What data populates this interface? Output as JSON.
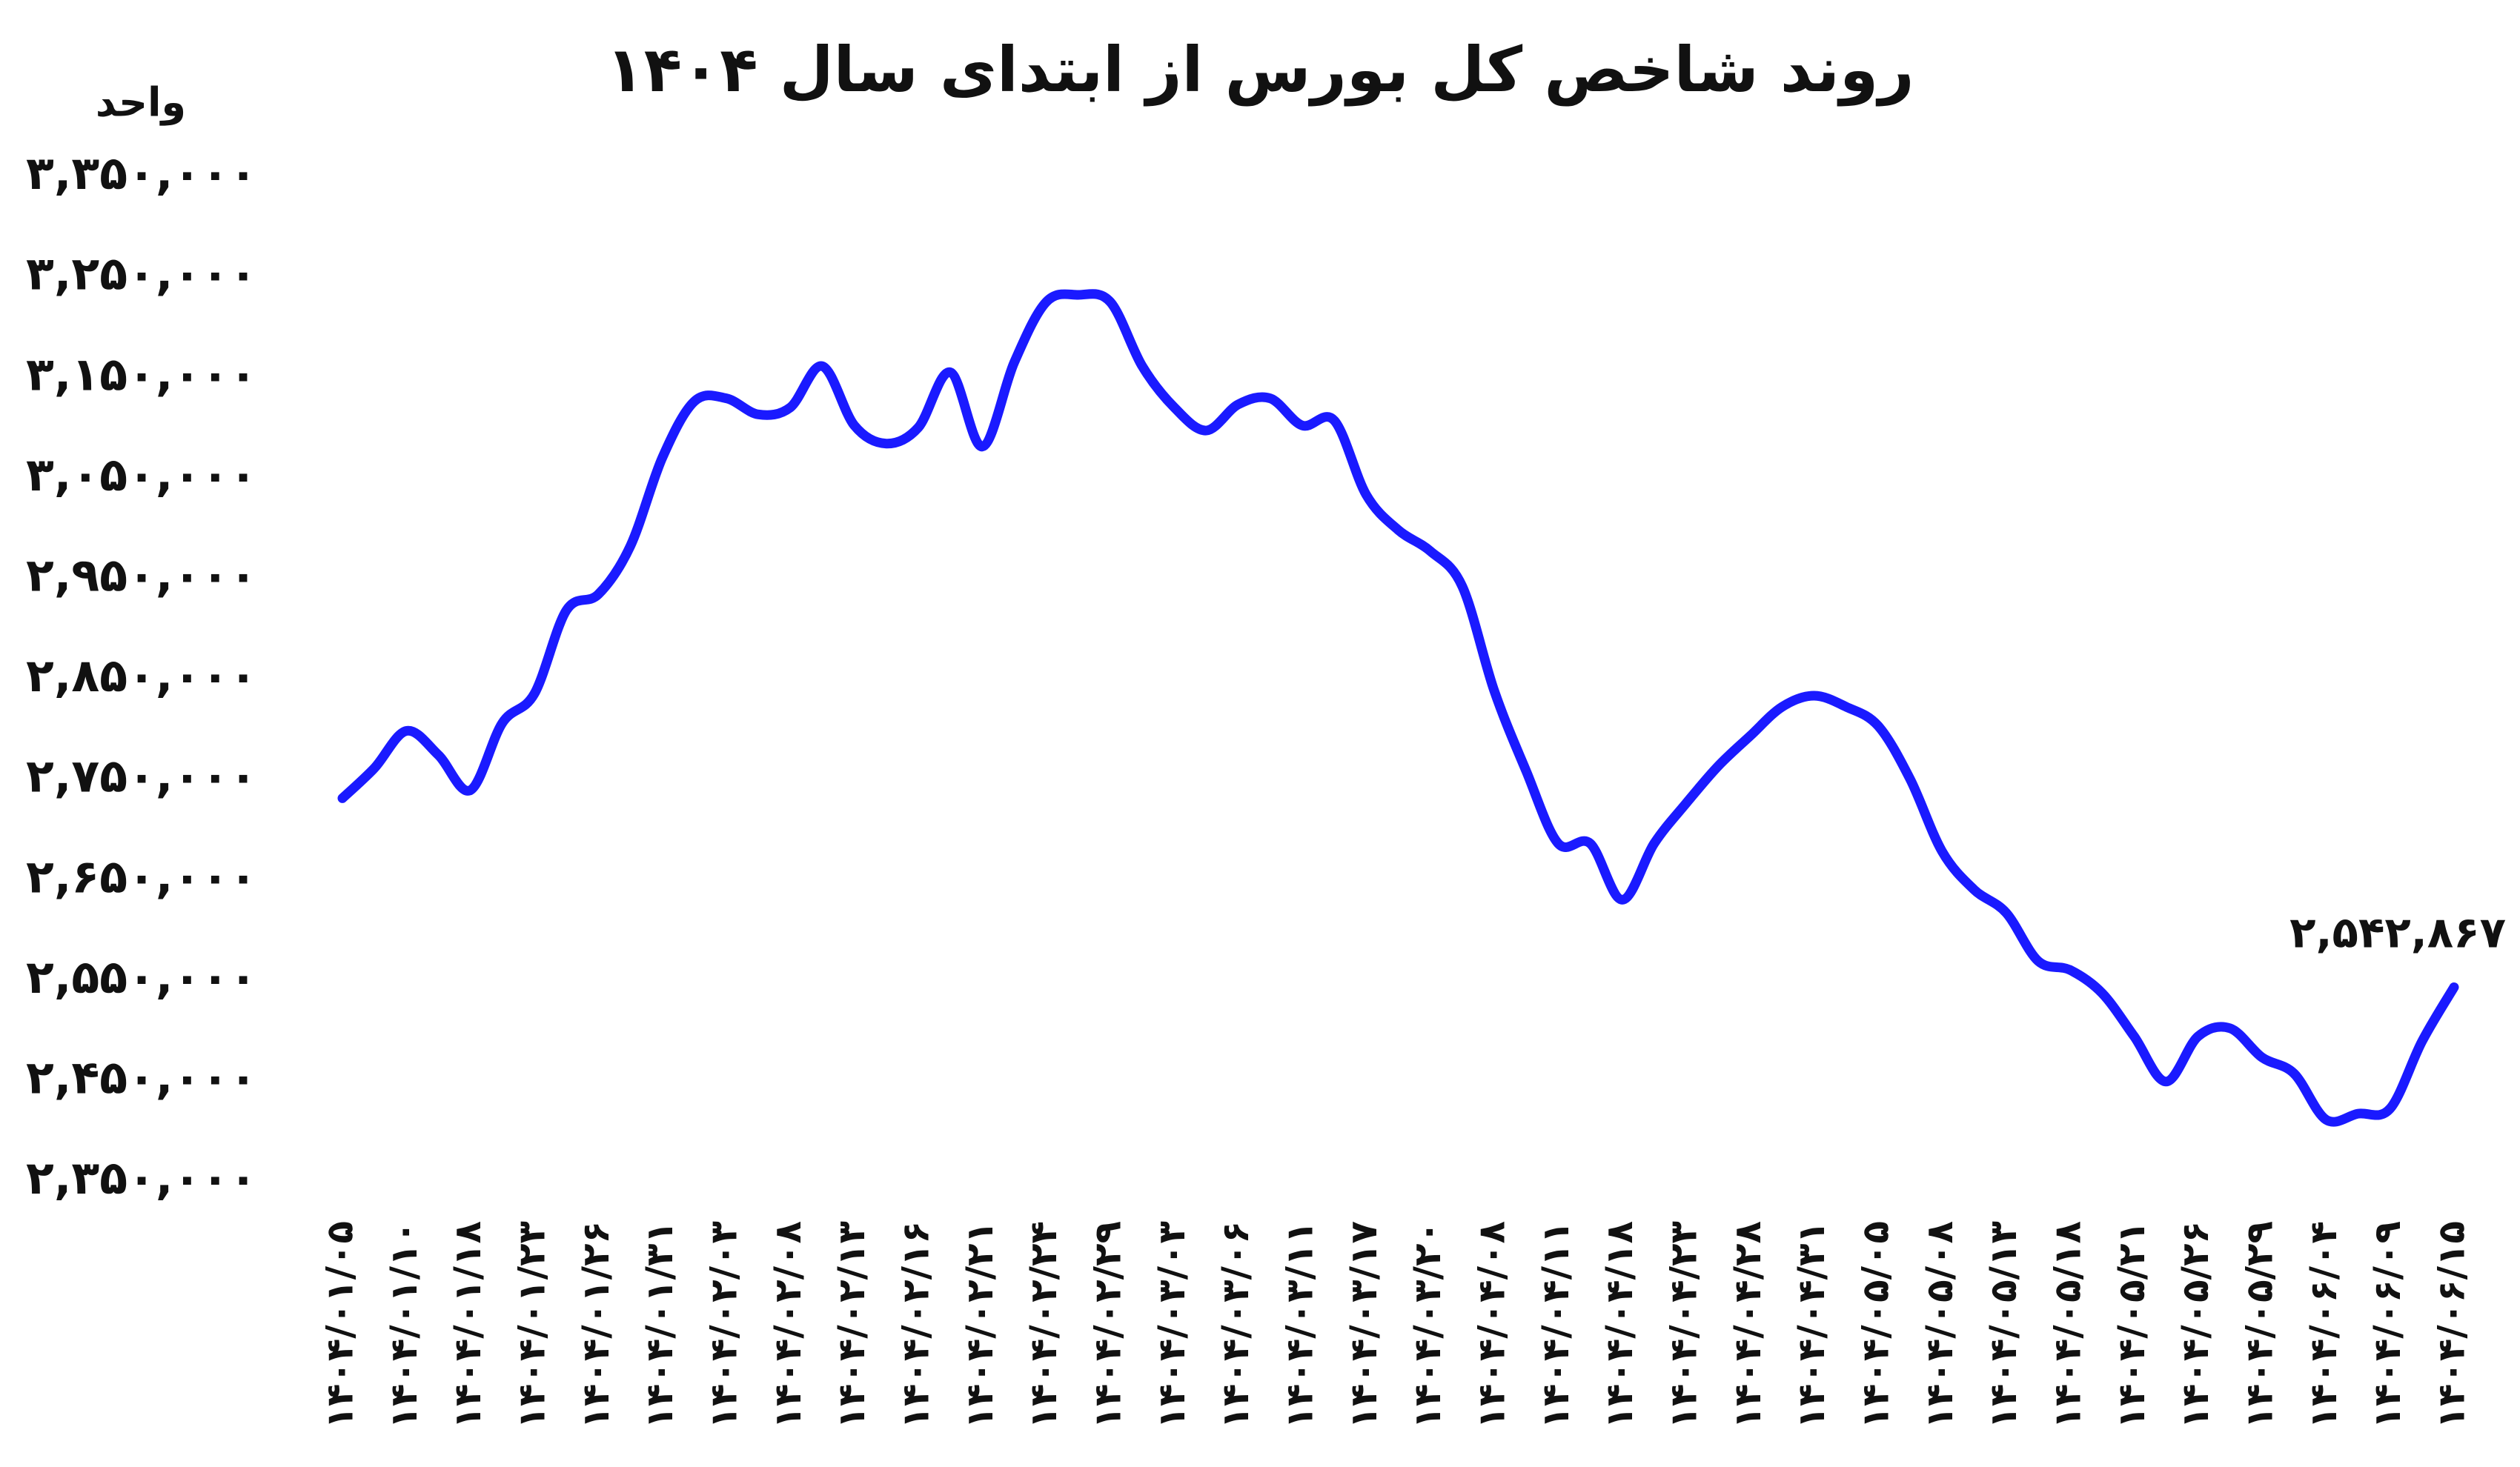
{
  "chart_data": {
    "type": "line",
    "title": "روند شاخص کل بورس از ابتدای سال ۱۴۰۴",
    "y_label": "واحد",
    "categories": [
      "۱۴۰۴/۰۱/۰۵",
      null,
      "۱۴۰۴/۰۱/۱۰",
      null,
      "۱۴۰۴/۰۱/۱۸",
      null,
      "۱۴۰۴/۰۱/۲۳",
      null,
      "۱۴۰۴/۰۱/۲۶",
      null,
      "۱۴۰۴/۰۱/۳۱",
      null,
      "۱۴۰۴/۰۲/۰۳",
      null,
      "۱۴۰۴/۰۲/۰۸",
      null,
      "۱۴۰۴/۰۲/۱۳",
      null,
      "۱۴۰۴/۰۲/۱۶",
      null,
      "۱۴۰۴/۰۲/۲۱",
      null,
      "۱۴۰۴/۰۲/۲۴",
      null,
      "۱۴۰۴/۰۲/۲۹",
      null,
      "۱۴۰۴/۰۳/۰۳",
      null,
      "۱۴۰۴/۰۳/۰۶",
      null,
      "۱۴۰۴/۰۳/۱۱",
      null,
      "۱۴۰۴/۰۳/۱۷",
      null,
      "۱۴۰۴/۰۳/۲۰",
      null,
      "۱۴۰۴/۰۴/۰۸",
      null,
      "۱۴۰۴/۰۴/۱۱",
      null,
      "۱۴۰۴/۰۴/۱۸",
      null,
      "۱۴۰۴/۰۴/۲۳",
      null,
      "۱۴۰۴/۰۴/۲۸",
      null,
      "۱۴۰۴/۰۴/۳۱",
      null,
      "۱۴۰۴/۰۵/۰۵",
      null,
      "۱۴۰۴/۰۵/۰۸",
      null,
      "۱۴۰۴/۰۵/۱۳",
      null,
      "۱۴۰۴/۰۵/۱۸",
      null,
      "۱۴۰۴/۰۵/۲۱",
      null,
      "۱۴۰۴/۰۵/۲۶",
      null,
      "۱۴۰۴/۰۵/۲۹",
      null,
      "۱۴۰۴/۰۶/۰۴",
      null,
      "۱۴۰۴/۰۶/۰۹",
      null,
      "۱۴۰۴/۰۶/۱۵"
    ],
    "values": [
      2731000,
      2761000,
      2798000,
      2774000,
      2739000,
      2806000,
      2835000,
      2918000,
      2934000,
      2982000,
      3070000,
      3126000,
      3129000,
      3113000,
      3120000,
      3161000,
      3102000,
      3084000,
      3100000,
      3155000,
      3081000,
      3165000,
      3225000,
      3232000,
      3225000,
      3161000,
      3120000,
      3097000,
      3123000,
      3129000,
      3102000,
      3107000,
      3033000,
      2998000,
      2977000,
      2942000,
      2838000,
      2758000,
      2686000,
      2686000,
      2630000,
      2686000,
      2726000,
      2763000,
      2793000,
      2822000,
      2833000,
      2822000,
      2803000,
      2750000,
      2678000,
      2640000,
      2617000,
      2569000,
      2560000,
      2537000,
      2494000,
      2449000,
      2494000,
      2502000,
      2473000,
      2457000,
      2411000,
      2417000,
      2422000,
      2489000,
      2542867
    ],
    "value_labels": [
      null,
      null,
      null,
      null,
      null,
      null,
      null,
      null,
      null,
      null,
      null,
      null,
      null,
      null,
      null,
      null,
      null,
      null,
      null,
      null,
      null,
      null,
      null,
      null,
      null,
      null,
      null,
      null,
      null,
      null,
      null,
      null,
      null,
      null,
      null,
      null,
      null,
      null,
      null,
      null,
      null,
      null,
      null,
      null,
      null,
      null,
      null,
      null,
      null,
      null,
      null,
      null,
      null,
      null,
      null,
      null,
      null,
      null,
      null,
      null,
      null,
      null,
      null,
      null,
      null,
      null,
      "۲,۵۴۲,۸۶۷"
    ],
    "color": "#1a1aff",
    "ylim": [
      2350000,
      3350000
    ],
    "yticks": [
      {
        "value": 3350000,
        "label": "۳,۳۵۰,۰۰۰"
      },
      {
        "value": 3250000,
        "label": "۳,۲۵۰,۰۰۰"
      },
      {
        "value": 3150000,
        "label": "۳,۱۵۰,۰۰۰"
      },
      {
        "value": 3050000,
        "label": "۳,۰۵۰,۰۰۰"
      },
      {
        "value": 2950000,
        "label": "۲,۹۵۰,۰۰۰"
      },
      {
        "value": 2850000,
        "label": "۲,۸۵۰,۰۰۰"
      },
      {
        "value": 2750000,
        "label": "۲,۷۵۰,۰۰۰"
      },
      {
        "value": 2650000,
        "label": "۲,۶۵۰,۰۰۰"
      },
      {
        "value": 2550000,
        "label": "۲,۵۵۰,۰۰۰"
      },
      {
        "value": 2450000,
        "label": "۲,۴۵۰,۰۰۰"
      },
      {
        "value": 2350000,
        "label": "۲,۳۵۰,۰۰۰"
      }
    ],
    "grid": false
  }
}
